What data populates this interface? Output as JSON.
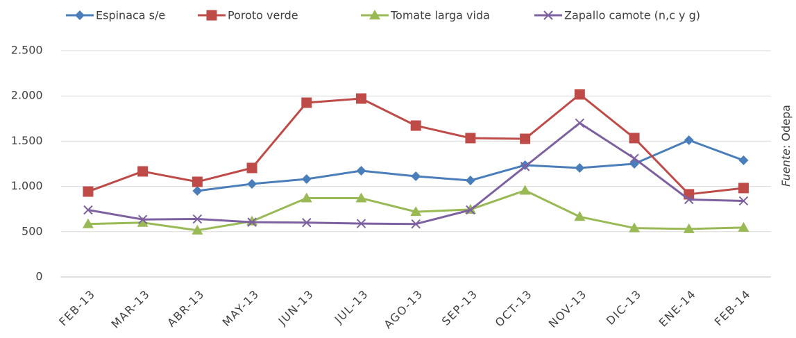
{
  "chart_data": {
    "type": "line",
    "categories": [
      "FEB-13",
      "MAR-13",
      "ABR-13",
      "MAY-13",
      "JUN-13",
      "JUL-13",
      "AGO-13",
      "SEP-13",
      "OCT-13",
      "NOV-13",
      "DIC-13",
      "ENE-14",
      "FEB-14"
    ],
    "series": [
      {
        "name": "Espinaca s/e",
        "color": "#4a7ebb",
        "marker": "diamond",
        "values": [
          null,
          null,
          951,
          1028,
          1081,
          1173,
          1112,
          1066,
          1235,
          1204,
          1250,
          1511,
          1288
        ]
      },
      {
        "name": "Poroto verde",
        "color": "#be4b48",
        "marker": "square",
        "values": [
          943,
          1166,
          1051,
          1204,
          1925,
          1971,
          1672,
          1534,
          1526,
          2017,
          1534,
          913,
          982
        ]
      },
      {
        "name": "Tomate larga vida",
        "color": "#98b954",
        "marker": "triangle",
        "values": [
          585,
          600,
          515,
          615,
          870,
          870,
          720,
          745,
          955,
          665,
          540,
          530,
          545
        ]
      },
      {
        "name": "Zapallo camote (n,c y g)",
        "color": "#7d60a0",
        "marker": "x",
        "values": [
          740,
          635,
          640,
          605,
          600,
          590,
          585,
          740,
          1220,
          1700,
          1310,
          855,
          840
        ]
      }
    ],
    "ylim": [
      0,
      2500
    ],
    "yticks": [
      0,
      500,
      {
        "value": 1000,
        "label": "1.000"
      },
      {
        "value": 1500,
        "label": "1.500"
      },
      {
        "value": 2000,
        "label": "2.000"
      },
      {
        "value": 2500,
        "label": "2.500"
      }
    ],
    "grid": true,
    "legend": "top",
    "source_label": "Fuente",
    "source": ": Odepa"
  }
}
